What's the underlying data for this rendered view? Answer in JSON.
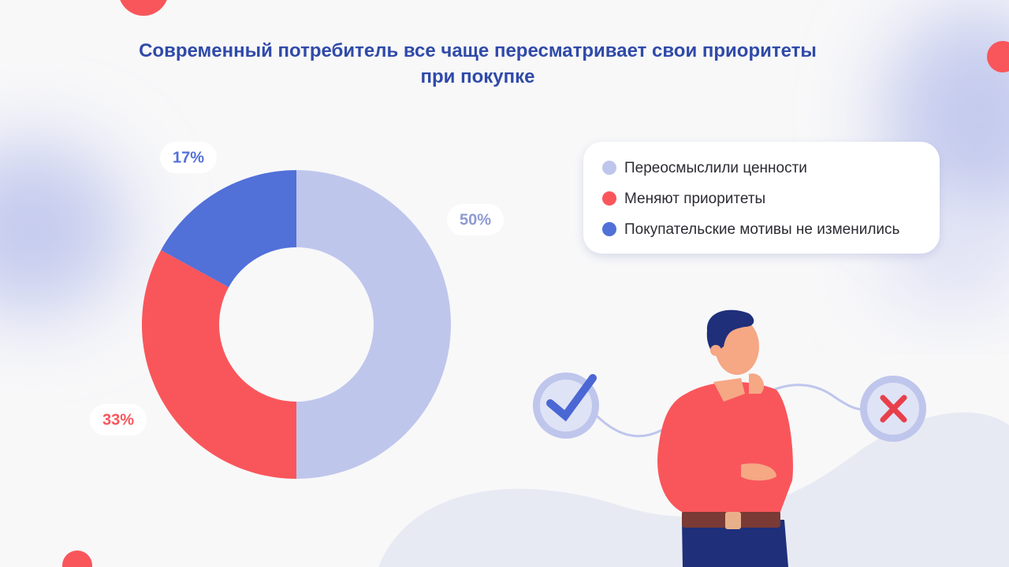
{
  "chart_data": {
    "type": "pie",
    "donut": true,
    "title": "Современный потребитель все чаще пересматривает свои приоритеты при покупке",
    "categories": [
      "Переосмыслили ценности",
      "Меняют приоритеты",
      "Покупательские мотивы не изменились"
    ],
    "values": [
      50,
      33,
      17
    ],
    "value_labels": [
      "50%",
      "33%",
      "17%"
    ],
    "colors": [
      "#bfc6ec",
      "#f9565b",
      "#5170d8"
    ]
  }
}
